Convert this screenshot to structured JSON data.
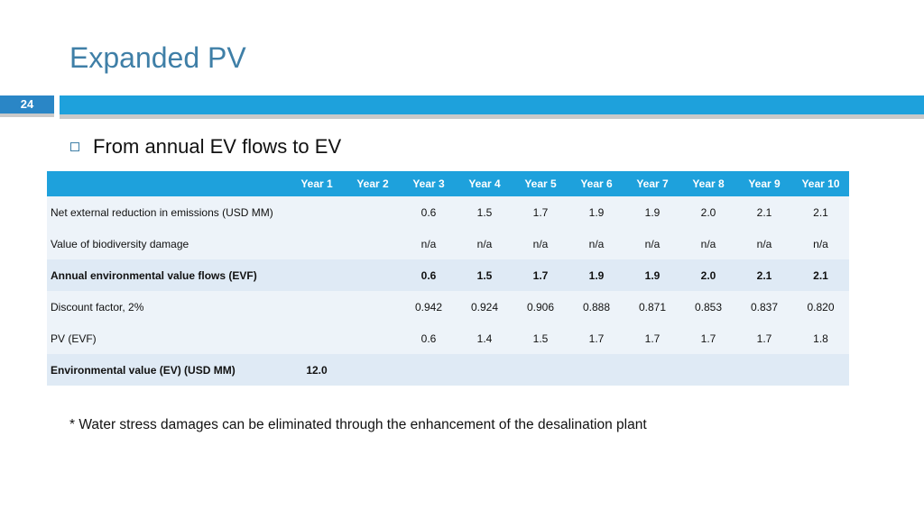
{
  "slide": {
    "title": "Expanded PV",
    "number": "24",
    "bullet": "From annual EV flows to EV",
    "footnote": "* Water stress damages can be eliminated through the enhancement of the desalination plant"
  },
  "table": {
    "headers": [
      "",
      "Year 1",
      "Year 2",
      "Year 3",
      "Year 4",
      "Year 5",
      "Year 6",
      "Year 7",
      "Year 8",
      "Year 9",
      "Year 10"
    ],
    "rows": [
      {
        "label": "Net external reduction in emissions (USD MM)",
        "values": [
          "",
          "",
          "0.6",
          "1.5",
          "1.7",
          "1.9",
          "1.9",
          "2.0",
          "2.1",
          "2.1"
        ]
      },
      {
        "label": "Value of biodiversity damage",
        "values": [
          "",
          "",
          "n/a",
          "n/a",
          "n/a",
          "n/a",
          "n/a",
          "n/a",
          "n/a",
          "n/a"
        ]
      },
      {
        "label": "Annual environmental value flows (EVF)",
        "values": [
          "",
          "",
          "0.6",
          "1.5",
          "1.7",
          "1.9",
          "1.9",
          "2.0",
          "2.1",
          "2.1"
        ]
      },
      {
        "label": "Discount factor, 2%",
        "values": [
          "",
          "",
          "0.942",
          "0.924",
          "0.906",
          "0.888",
          "0.871",
          "0.853",
          "0.837",
          "0.820"
        ]
      },
      {
        "label": "PV (EVF)",
        "values": [
          "",
          "",
          "0.6",
          "1.4",
          "1.5",
          "1.7",
          "1.7",
          "1.7",
          "1.7",
          "1.8"
        ]
      },
      {
        "label": "Environmental value (EV) (USD MM)",
        "values": [
          "12.0",
          "",
          "",
          "",
          "",
          "",
          "",
          "",
          "",
          ""
        ]
      }
    ]
  }
}
